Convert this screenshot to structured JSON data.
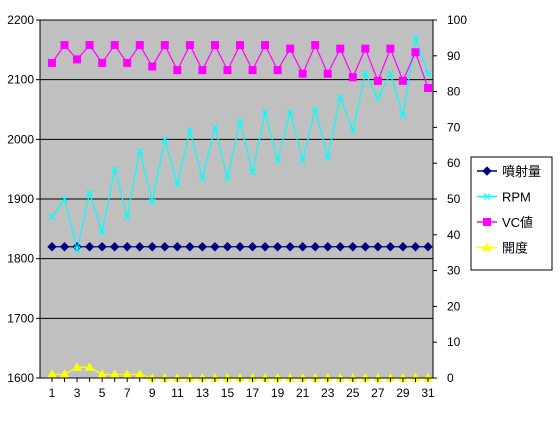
{
  "chart_data": {
    "type": "line",
    "title": "",
    "xlabel": "",
    "ylabel": "",
    "categories": [
      1,
      2,
      3,
      4,
      5,
      6,
      7,
      8,
      9,
      10,
      11,
      12,
      13,
      14,
      15,
      16,
      17,
      18,
      19,
      20,
      21,
      22,
      23,
      24,
      25,
      26,
      27,
      28,
      29,
      30,
      31
    ],
    "x_tick_labels": [
      1,
      3,
      5,
      7,
      9,
      11,
      13,
      15,
      17,
      19,
      21,
      23,
      25,
      27,
      29,
      31
    ],
    "ylim_left": [
      1600,
      2200
    ],
    "yticks_left": [
      1600,
      1700,
      1800,
      1900,
      2000,
      2100,
      2200
    ],
    "ylim_right": [
      0,
      100
    ],
    "yticks_right": [
      0,
      10,
      20,
      30,
      40,
      50,
      60,
      70,
      80,
      90,
      100
    ],
    "grid": "horizontal",
    "plot_background": "#c0c0c0",
    "legend_position": "right",
    "series": [
      {
        "name": "噴射量",
        "axis": "left",
        "color": "#000080",
        "marker": "diamond",
        "values": [
          1820,
          1820,
          1820,
          1820,
          1820,
          1820,
          1820,
          1820,
          1820,
          1820,
          1820,
          1820,
          1820,
          1820,
          1820,
          1820,
          1820,
          1820,
          1820,
          1820,
          1820,
          1820,
          1820,
          1820,
          1820,
          1820,
          1820,
          1820,
          1820,
          1820,
          1820
        ]
      },
      {
        "name": "RPM",
        "axis": "left",
        "color": "#00ffff",
        "marker": "x",
        "values": [
          1870,
          1900,
          1815,
          1910,
          1845,
          1950,
          1870,
          1980,
          1895,
          2000,
          1925,
          2015,
          1935,
          2020,
          1935,
          2030,
          1945,
          2045,
          1965,
          2045,
          1965,
          2050,
          1970,
          2070,
          2015,
          2110,
          2070,
          2110,
          2040,
          2170,
          2110
        ]
      },
      {
        "name": "VC値",
        "axis": "right",
        "color": "#ff00ff",
        "marker": "square",
        "values": [
          88,
          93,
          89,
          93,
          88,
          93,
          88,
          93,
          87,
          93,
          86,
          93,
          86,
          93,
          86,
          93,
          86,
          93,
          86,
          92,
          85,
          93,
          85,
          92,
          84,
          92,
          83,
          92,
          83,
          91,
          81
        ]
      },
      {
        "name": "開度",
        "axis": "right",
        "color": "#ffff00",
        "marker": "triangle",
        "values": [
          1,
          1,
          3,
          3,
          1,
          1,
          1,
          1,
          0,
          0,
          0,
          0,
          0,
          0,
          0,
          0,
          0,
          0,
          0,
          0,
          0,
          0,
          0,
          0,
          0,
          0,
          0,
          0,
          0,
          0,
          0
        ]
      }
    ]
  }
}
